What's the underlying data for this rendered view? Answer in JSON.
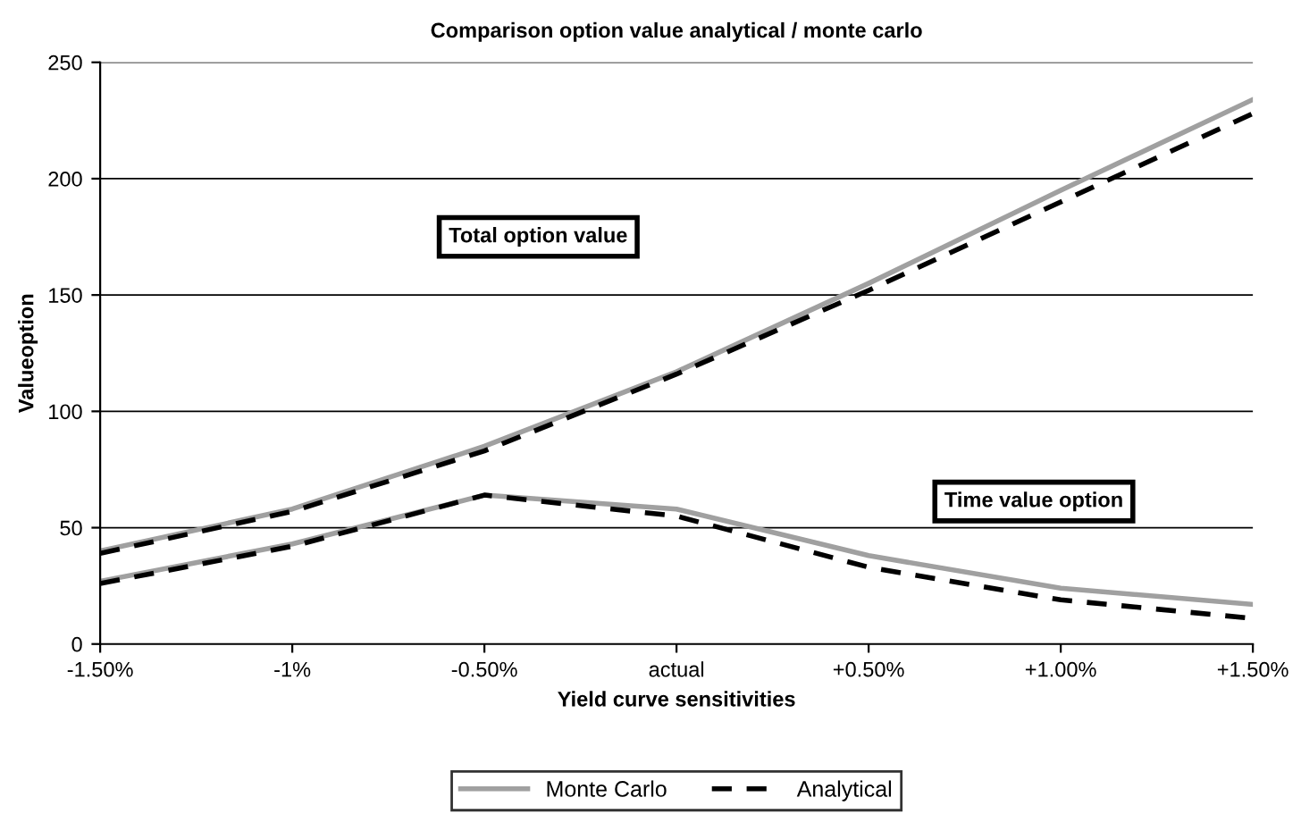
{
  "chart_data": {
    "type": "line",
    "title": "Comparison option value analytical / monte carlo",
    "xlabel": "Yield curve sensitivities",
    "ylabel": "Valueoption",
    "categories": [
      "-1.50%",
      "-1%",
      "-0.50%",
      "actual",
      "+0.50%",
      "+1.00%",
      "+1.50%"
    ],
    "series": [
      {
        "name": "Monte Carlo",
        "color": "#a0a0a0",
        "line_style": "solid",
        "values": [
          40,
          58,
          85,
          117,
          155,
          195,
          234
        ]
      },
      {
        "name": "Analytical",
        "color": "#000000",
        "line_style": "dashed",
        "values": [
          39,
          57,
          83,
          116,
          152,
          190,
          228
        ]
      },
      {
        "color": "#a0a0a0",
        "line_style": "solid",
        "values": [
          27,
          43,
          64,
          58,
          38,
          24,
          17
        ]
      },
      {
        "color": "#000000",
        "line_style": "dashed",
        "values": [
          26,
          42,
          64,
          55,
          33,
          19,
          11
        ]
      }
    ],
    "ylim": [
      0,
      250
    ],
    "yticks": [
      0,
      50,
      100,
      150,
      200,
      250
    ],
    "grid": "y",
    "legend": "bottom",
    "marker": "none",
    "annotations": [
      "Total option value",
      "Time value option"
    ]
  }
}
